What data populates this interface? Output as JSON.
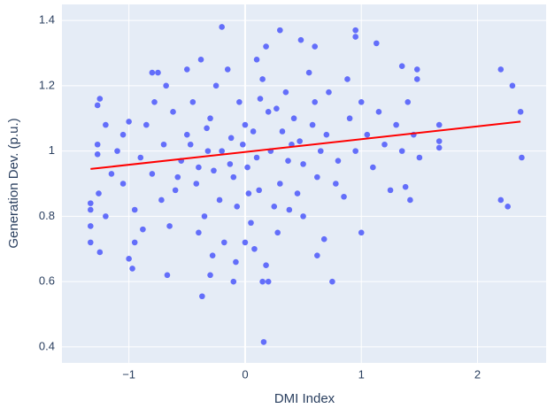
{
  "chart_data": {
    "type": "scatter",
    "x_label": "DMI Index",
    "y_label": "Generation Dev. (p.u.)",
    "xlim": [
      -1.576,
      2.59
    ],
    "ylim": [
      0.351,
      1.449
    ],
    "xticks": [
      {
        "value": -1,
        "label": "−1"
      },
      0,
      1,
      2
    ],
    "yticks": [
      0.4,
      0.6,
      0.8,
      1,
      1.2,
      1.4
    ],
    "grid": true,
    "background": "#e5ecf6",
    "series": [
      {
        "mode": "markers",
        "color": "#636efa",
        "x": [
          -1.33,
          -1.33,
          -1.33,
          -1.33,
          -1.25,
          -1.25,
          -1.27,
          -1.26,
          -1.27,
          -1.27,
          0.16,
          -0.37,
          -0.1,
          2.2,
          2.3,
          2.37,
          2.38,
          2.26,
          2.2,
          1.67,
          1.67,
          1.67,
          1.48,
          1.48,
          1.35,
          1.42,
          1.38,
          0.95,
          0.95,
          1.13,
          1.0,
          0.15,
          0.3,
          -0.2,
          0.18,
          0.48,
          0.6,
          0.75,
          0.62,
          -0.67,
          -0.97,
          -1.0,
          -0.95,
          -1.05,
          -1.0,
          -0.8,
          -0.75,
          -0.5,
          -0.4,
          -0.3,
          -0.2,
          -0.1,
          0,
          0.1,
          0.2,
          0.3,
          0.4,
          0.5,
          0.6,
          -0.6,
          -0.7,
          -0.8,
          0.7,
          0.8,
          0.9,
          -0.25,
          0.15,
          -0.35,
          0.05,
          0.25,
          -0.15,
          0.35,
          -0.45,
          -0.55,
          0.45,
          -0.05,
          0.12,
          -0.22,
          0.32,
          -0.32,
          0.02,
          -0.12,
          0.22,
          -0.42,
          0.42,
          -0.62,
          0.62,
          -0.72,
          0.72,
          -0.85,
          0.85,
          -0.9,
          0.95,
          -0.18,
          0.08,
          0.28,
          -0.28,
          0.18,
          -0.08,
          0.55,
          -0.5,
          -0.38,
          0.1,
          0.5,
          -0.65,
          0.65,
          -0.78,
          0.78,
          -0.95,
          1.05,
          1.1,
          1.2,
          1.15,
          1.25,
          1.3,
          -1.1,
          -1.15,
          -1.05,
          -0.02,
          0.07,
          -0.27,
          0.37,
          -0.47,
          0.47,
          0.58,
          -0.58,
          0.13,
          -0.13,
          0.27,
          -0.33,
          0.03,
          -0.07,
          0.38,
          -0.4,
          0.88,
          -0.88,
          0.68,
          -0.68,
          0.2,
          -0.3,
          0.0,
          1.0,
          1.35,
          1.45,
          1.5,
          1.4,
          -1.2,
          -1.2
        ],
        "values": [
          0.72,
          0.77,
          0.82,
          0.84,
          0.69,
          1.16,
          1.14,
          0.87,
          1.02,
          0.99,
          0.415,
          0.555,
          0.6,
          1.25,
          1.2,
          1.12,
          0.98,
          0.83,
          0.85,
          1.08,
          1.03,
          1.01,
          1.25,
          1.22,
          1.26,
          0.85,
          0.89,
          1.37,
          1.35,
          1.33,
          0.75,
          0.6,
          1.37,
          1.38,
          1.32,
          1.34,
          1.32,
          0.6,
          0.68,
          0.62,
          0.64,
          0.67,
          0.72,
          0.9,
          1.09,
          1.24,
          1.24,
          1.05,
          0.95,
          1.1,
          1.0,
          0.92,
          1.08,
          0.98,
          1.12,
          0.9,
          1.02,
          0.96,
          1.15,
          0.88,
          1.02,
          0.93,
          1.05,
          0.97,
          1.1,
          1.2,
          1.22,
          0.8,
          0.78,
          0.83,
          1.25,
          1.18,
          1.15,
          0.97,
          0.87,
          1.15,
          0.88,
          0.85,
          1.06,
          1.0,
          0.95,
          1.04,
          1.0,
          0.9,
          1.1,
          1.12,
          0.92,
          0.85,
          1.18,
          1.08,
          0.86,
          0.98,
          1.0,
          0.72,
          0.7,
          0.75,
          0.68,
          0.65,
          0.66,
          1.24,
          1.25,
          1.28,
          1.28,
          0.8,
          0.77,
          1.0,
          1.15,
          0.9,
          0.82,
          1.05,
          0.95,
          1.02,
          1.12,
          0.88,
          1.08,
          1.0,
          0.93,
          1.05,
          1.02,
          1.06,
          0.94,
          0.97,
          1.02,
          1.03,
          1.08,
          0.92,
          1.16,
          0.96,
          1.13,
          1.07,
          0.87,
          0.83,
          0.82,
          0.75,
          1.22,
          0.76,
          0.73,
          1.2,
          0.6,
          0.62,
          0.72,
          1.15,
          1.0,
          1.05,
          0.98,
          1.15,
          0.8,
          1.08
        ]
      },
      {
        "mode": "line",
        "color": "#ff0000",
        "x": [
          -1.33,
          2.37
        ],
        "values": [
          0.945,
          1.09
        ]
      }
    ]
  }
}
